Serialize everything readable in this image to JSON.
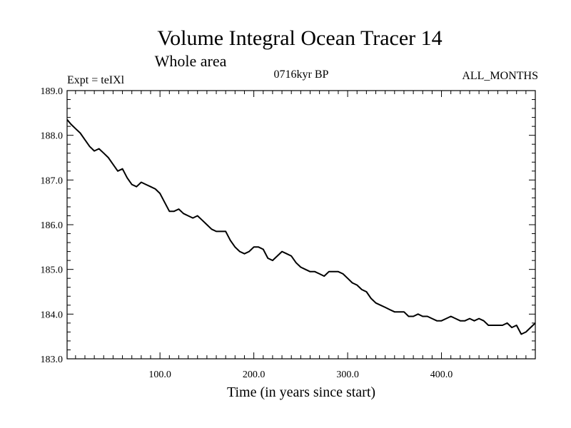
{
  "chart_data": {
    "type": "line",
    "title": "Volume Integral Ocean Tracer 14",
    "subtitle": "Whole area",
    "expt_label": "Expt = teIXl",
    "period_label": "0716kyr BP",
    "months_label": "ALL_MONTHS",
    "xlabel": "Time (in years since start)",
    "ylabel": "",
    "xlim": [
      1,
      500
    ],
    "ylim": [
      183.0,
      189.0
    ],
    "grid": false,
    "x_ticks": [
      100,
      200,
      300,
      400
    ],
    "x_tick_labels": [
      "100.0",
      "200.0",
      "300.0",
      "400.0"
    ],
    "y_ticks": [
      183,
      184,
      185,
      186,
      187,
      188,
      189
    ],
    "y_tick_labels": [
      "183.0",
      "184.0",
      "185.0",
      "186.0",
      "187.0",
      "188.0",
      "189.0"
    ],
    "series": [
      {
        "color": "#000000",
        "x": [
          1,
          5,
          10,
          15,
          20,
          25,
          30,
          35,
          40,
          45,
          50,
          55,
          60,
          65,
          70,
          75,
          80,
          85,
          90,
          95,
          100,
          105,
          110,
          115,
          120,
          125,
          130,
          135,
          140,
          145,
          150,
          155,
          160,
          165,
          170,
          175,
          180,
          185,
          190,
          195,
          200,
          205,
          210,
          215,
          220,
          225,
          230,
          235,
          240,
          245,
          250,
          255,
          260,
          265,
          270,
          275,
          280,
          285,
          290,
          295,
          300,
          305,
          310,
          315,
          320,
          325,
          330,
          335,
          340,
          345,
          350,
          355,
          360,
          365,
          370,
          375,
          380,
          385,
          390,
          395,
          400,
          405,
          410,
          415,
          420,
          425,
          430,
          435,
          440,
          445,
          450,
          455,
          460,
          465,
          470,
          475,
          480,
          485,
          490,
          495,
          500
        ],
        "y": [
          188.35,
          188.25,
          188.15,
          188.05,
          187.9,
          187.75,
          187.65,
          187.7,
          187.6,
          187.5,
          187.35,
          187.2,
          187.25,
          187.05,
          186.9,
          186.85,
          186.95,
          186.9,
          186.85,
          186.8,
          186.7,
          186.5,
          186.3,
          186.3,
          186.35,
          186.25,
          186.2,
          186.15,
          186.2,
          186.1,
          186.0,
          185.9,
          185.85,
          185.85,
          185.85,
          185.65,
          185.5,
          185.4,
          185.35,
          185.4,
          185.5,
          185.5,
          185.45,
          185.25,
          185.2,
          185.3,
          185.4,
          185.35,
          185.3,
          185.15,
          185.05,
          185.0,
          184.95,
          184.95,
          184.9,
          184.85,
          184.95,
          184.95,
          184.95,
          184.9,
          184.8,
          184.7,
          184.65,
          184.55,
          184.5,
          184.35,
          184.25,
          184.2,
          184.15,
          184.1,
          184.05,
          184.05,
          184.05,
          183.95,
          183.95,
          184.0,
          183.95,
          183.95,
          183.9,
          183.85,
          183.85,
          183.9,
          183.95,
          183.9,
          183.85,
          183.85,
          183.9,
          183.85,
          183.9,
          183.85,
          183.75,
          183.75,
          183.75,
          183.75,
          183.8,
          183.7,
          183.75,
          183.55,
          183.6,
          183.7,
          183.8
        ]
      }
    ]
  }
}
